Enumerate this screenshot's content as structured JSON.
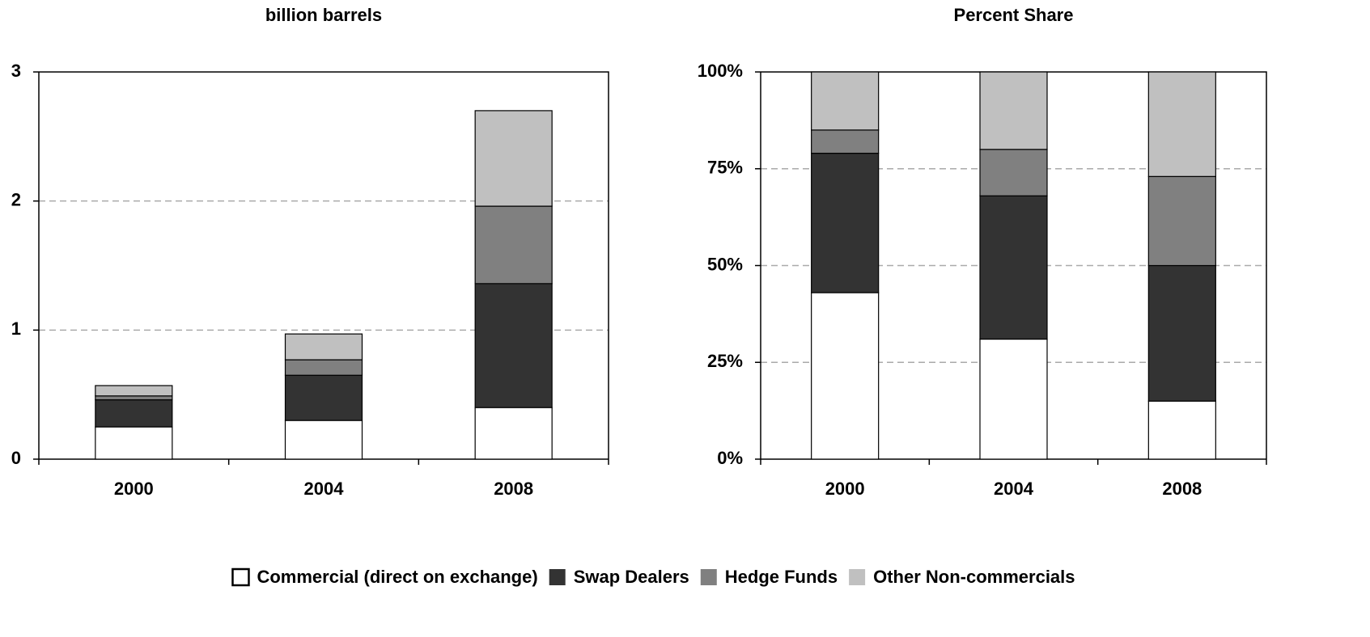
{
  "chart_data": [
    {
      "type": "bar",
      "stacked": true,
      "title": "billion barrels",
      "categories": [
        "2000",
        "2004",
        "2008"
      ],
      "series": [
        {
          "name": "Commercial (direct on exchange)",
          "color": "#ffffff",
          "values": [
            0.25,
            0.3,
            0.4
          ]
        },
        {
          "name": "Swap Dealers",
          "color": "#333333",
          "values": [
            0.21,
            0.35,
            0.96
          ]
        },
        {
          "name": "Hedge Funds",
          "color": "#808080",
          "values": [
            0.03,
            0.12,
            0.6
          ]
        },
        {
          "name": "Other Non-commercials",
          "color": "#c0c0c0",
          "values": [
            0.08,
            0.2,
            0.74
          ]
        }
      ],
      "ylim": [
        0,
        3
      ],
      "yticks": [
        0,
        1,
        2,
        3
      ],
      "grid": true,
      "legend": "bottom"
    },
    {
      "type": "bar",
      "stacked": true,
      "title": "Percent Share",
      "categories": [
        "2000",
        "2004",
        "2008"
      ],
      "series": [
        {
          "color": "#ffffff",
          "values": [
            43,
            31,
            15
          ]
        },
        {
          "color": "#333333",
          "values": [
            36,
            37,
            35
          ]
        },
        {
          "color": "#808080",
          "values": [
            6,
            12,
            23
          ]
        },
        {
          "color": "#c0c0c0",
          "values": [
            15,
            20,
            27
          ]
        }
      ],
      "ylim": [
        0,
        100
      ],
      "yticks": [
        {
          "value": 0,
          "label": "0%"
        },
        {
          "value": 25,
          "label": "25%"
        },
        {
          "value": 50,
          "label": "50%"
        },
        {
          "value": 75,
          "label": "75%"
        },
        {
          "value": 100,
          "label": "100%"
        }
      ],
      "grid": true
    }
  ]
}
